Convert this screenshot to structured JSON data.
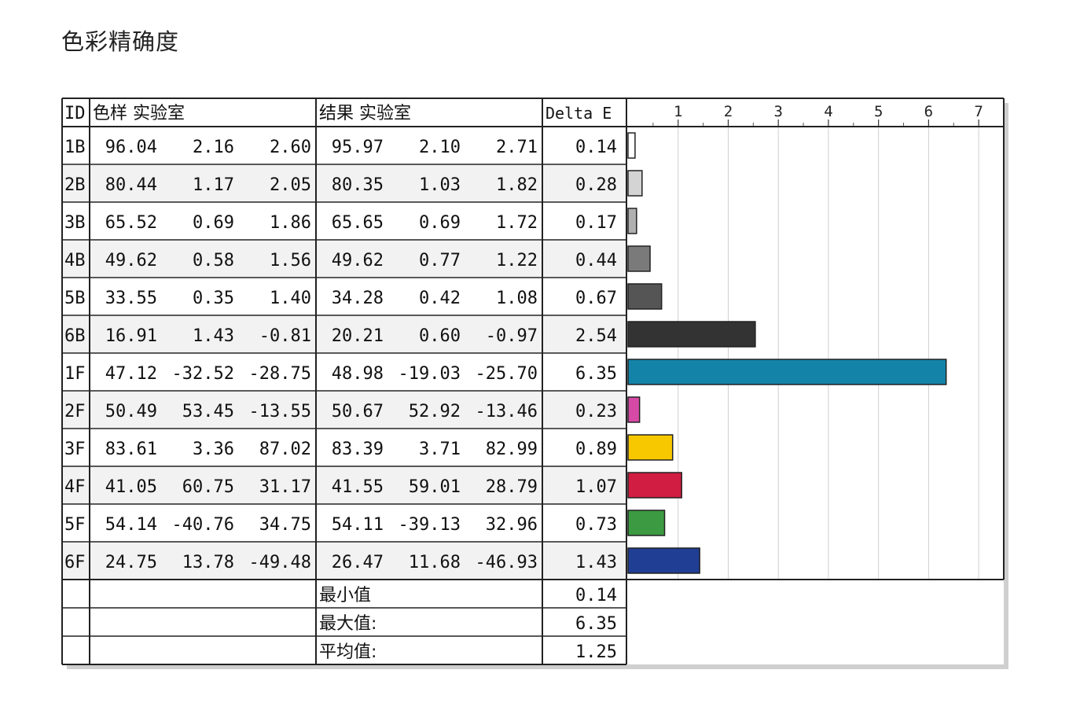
{
  "page_title": "色彩精确度",
  "headers": {
    "id": "ID",
    "reference": "色样 实验室",
    "measured": "结果 实验室",
    "delta": "Delta E"
  },
  "chart_data": {
    "type": "bar",
    "orientation": "horizontal",
    "x_ticks": [
      "1",
      "2",
      "3",
      "4",
      "5",
      "6",
      "7"
    ],
    "xlim": [
      0,
      7.5
    ],
    "grid": true,
    "categories": [
      "1B",
      "2B",
      "3B",
      "4B",
      "5B",
      "6B",
      "1F",
      "2F",
      "3F",
      "4F",
      "5F",
      "6F"
    ],
    "values": [
      0.14,
      0.28,
      0.17,
      0.44,
      0.67,
      2.54,
      6.35,
      0.23,
      0.89,
      1.07,
      0.73,
      1.43
    ],
    "bar_colors": [
      "#ffffff",
      "#d4d4d4",
      "#b0b0b0",
      "#7a7a7a",
      "#555555",
      "#333333",
      "#1384a8",
      "#d64aa6",
      "#f7c800",
      "#d11d42",
      "#3c9a42",
      "#1f3e94"
    ]
  },
  "rows": [
    {
      "id": "1B",
      "ref": [
        "96.04",
        "2.16",
        "2.60"
      ],
      "res": [
        "95.97",
        "2.10",
        "2.71"
      ],
      "de": "0.14"
    },
    {
      "id": "2B",
      "ref": [
        "80.44",
        "1.17",
        "2.05"
      ],
      "res": [
        "80.35",
        "1.03",
        "1.82"
      ],
      "de": "0.28"
    },
    {
      "id": "3B",
      "ref": [
        "65.52",
        "0.69",
        "1.86"
      ],
      "res": [
        "65.65",
        "0.69",
        "1.72"
      ],
      "de": "0.17"
    },
    {
      "id": "4B",
      "ref": [
        "49.62",
        "0.58",
        "1.56"
      ],
      "res": [
        "49.62",
        "0.77",
        "1.22"
      ],
      "de": "0.44"
    },
    {
      "id": "5B",
      "ref": [
        "33.55",
        "0.35",
        "1.40"
      ],
      "res": [
        "34.28",
        "0.42",
        "1.08"
      ],
      "de": "0.67"
    },
    {
      "id": "6B",
      "ref": [
        "16.91",
        "1.43",
        "-0.81"
      ],
      "res": [
        "20.21",
        "0.60",
        "-0.97"
      ],
      "de": "2.54"
    },
    {
      "id": "1F",
      "ref": [
        "47.12",
        "-32.52",
        "-28.75"
      ],
      "res": [
        "48.98",
        "-19.03",
        "-25.70"
      ],
      "de": "6.35"
    },
    {
      "id": "2F",
      "ref": [
        "50.49",
        "53.45",
        "-13.55"
      ],
      "res": [
        "50.67",
        "52.92",
        "-13.46"
      ],
      "de": "0.23"
    },
    {
      "id": "3F",
      "ref": [
        "83.61",
        "3.36",
        "87.02"
      ],
      "res": [
        "83.39",
        "3.71",
        "82.99"
      ],
      "de": "0.89"
    },
    {
      "id": "4F",
      "ref": [
        "41.05",
        "60.75",
        "31.17"
      ],
      "res": [
        "41.55",
        "59.01",
        "28.79"
      ],
      "de": "1.07"
    },
    {
      "id": "5F",
      "ref": [
        "54.14",
        "-40.76",
        "34.75"
      ],
      "res": [
        "54.11",
        "-39.13",
        "32.96"
      ],
      "de": "0.73"
    },
    {
      "id": "6F",
      "ref": [
        "24.75",
        "13.78",
        "-49.48"
      ],
      "res": [
        "26.47",
        "11.68",
        "-46.93"
      ],
      "de": "1.43"
    }
  ],
  "summary": [
    {
      "label": "最小值",
      "value": "0.14"
    },
    {
      "label": "最大值:",
      "value": "6.35"
    },
    {
      "label": "平均值:",
      "value": "1.25"
    }
  ]
}
